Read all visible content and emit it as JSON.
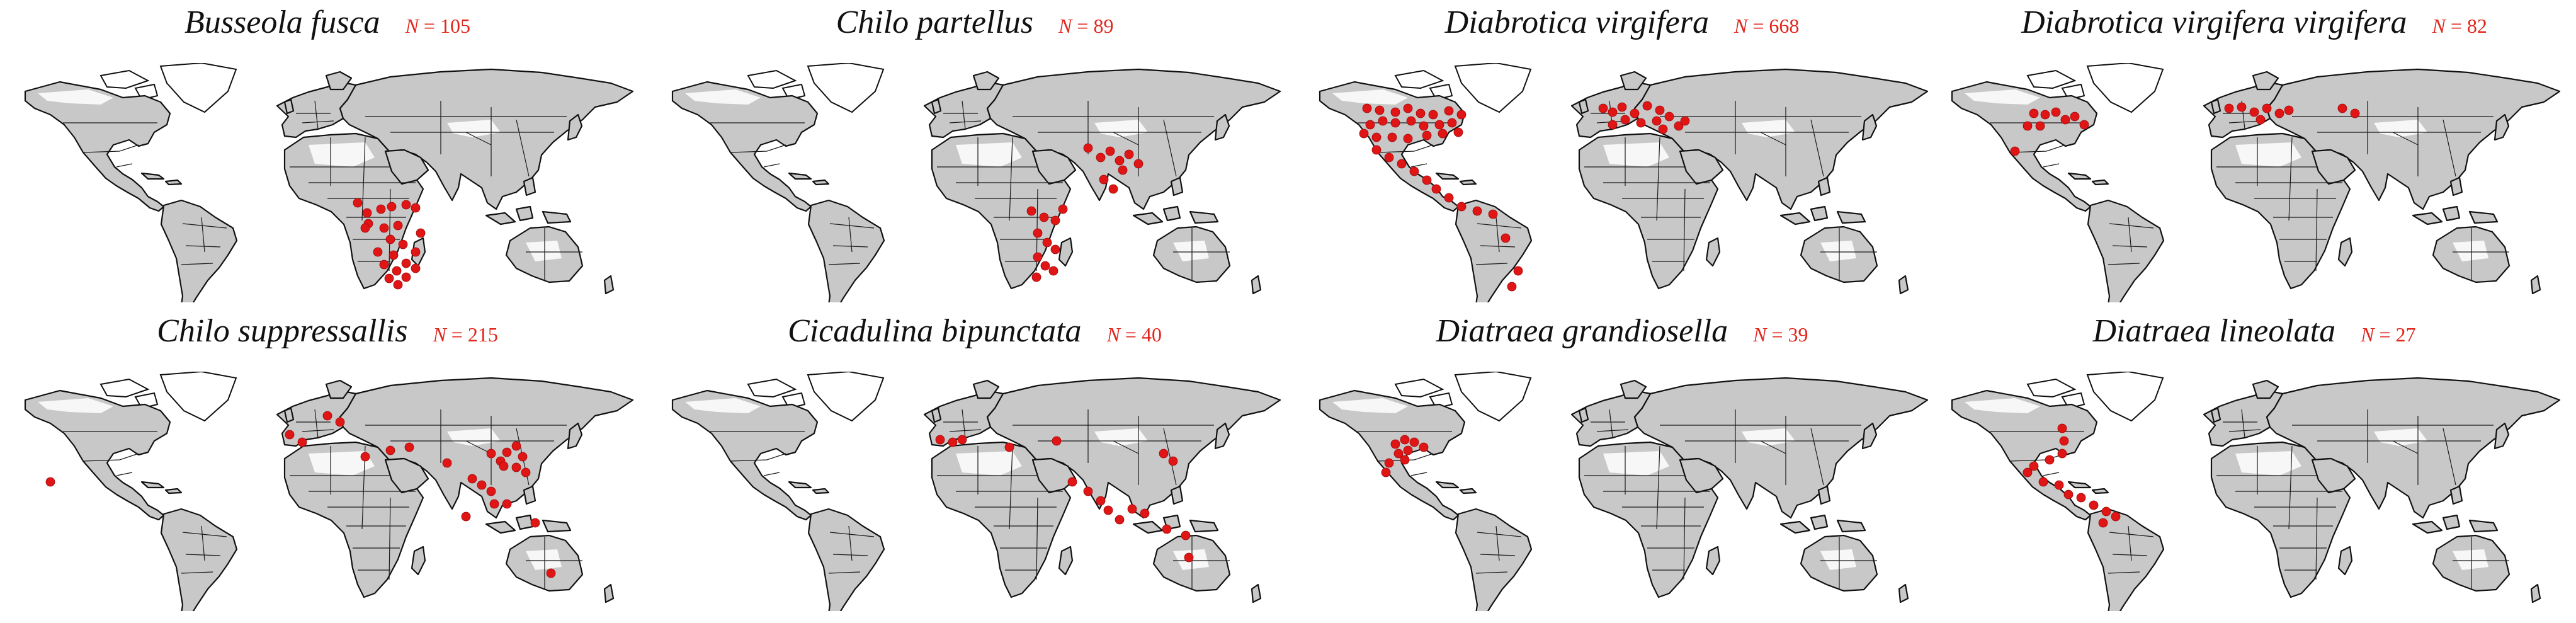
{
  "panels": [
    {
      "species": "Busseola fusca",
      "n_label": "N",
      "n_value": "105",
      "points": [
        [
          548,
          222
        ],
        [
          563,
          238
        ],
        [
          585,
          232
        ],
        [
          602,
          228
        ],
        [
          625,
          225
        ],
        [
          640,
          230
        ],
        [
          565,
          255
        ],
        [
          590,
          262
        ],
        [
          612,
          258
        ],
        [
          600,
          280
        ],
        [
          620,
          288
        ],
        [
          640,
          300
        ],
        [
          605,
          305
        ],
        [
          590,
          320
        ],
        [
          610,
          330
        ],
        [
          625,
          318
        ],
        [
          598,
          342
        ],
        [
          612,
          352
        ],
        [
          625,
          340
        ],
        [
          640,
          326
        ],
        [
          580,
          300
        ],
        [
          560,
          262
        ],
        [
          648,
          270
        ]
      ]
    },
    {
      "species": "Chilo partellus",
      "n_label": "N",
      "n_value": "89",
      "points": [
        [
          680,
          135
        ],
        [
          700,
          150
        ],
        [
          715,
          140
        ],
        [
          730,
          155
        ],
        [
          745,
          145
        ],
        [
          760,
          160
        ],
        [
          735,
          170
        ],
        [
          705,
          185
        ],
        [
          720,
          200
        ],
        [
          590,
          235
        ],
        [
          610,
          245
        ],
        [
          628,
          250
        ],
        [
          640,
          232
        ],
        [
          600,
          270
        ],
        [
          615,
          285
        ],
        [
          628,
          296
        ],
        [
          600,
          308
        ],
        [
          612,
          322
        ],
        [
          625,
          330
        ],
        [
          598,
          340
        ]
      ]
    },
    {
      "species": "Diabrotica virgifera",
      "n_label": "N",
      "n_value": "668",
      "points": [
        [
          95,
          72
        ],
        [
          115,
          75
        ],
        [
          140,
          78
        ],
        [
          160,
          72
        ],
        [
          180,
          80
        ],
        [
          200,
          82
        ],
        [
          225,
          76
        ],
        [
          245,
          82
        ],
        [
          230,
          95
        ],
        [
          210,
          98
        ],
        [
          185,
          100
        ],
        [
          165,
          92
        ],
        [
          140,
          95
        ],
        [
          120,
          92
        ],
        [
          100,
          98
        ],
        [
          90,
          112
        ],
        [
          110,
          118
        ],
        [
          135,
          118
        ],
        [
          160,
          120
        ],
        [
          190,
          115
        ],
        [
          215,
          112
        ],
        [
          240,
          110
        ],
        [
          110,
          138
        ],
        [
          130,
          150
        ],
        [
          150,
          160
        ],
        [
          170,
          172
        ],
        [
          190,
          186
        ],
        [
          205,
          200
        ],
        [
          225,
          214
        ],
        [
          245,
          228
        ],
        [
          270,
          235
        ],
        [
          295,
          240
        ],
        [
          315,
          278
        ],
        [
          335,
          330
        ],
        [
          325,
          355
        ],
        [
          470,
          72
        ],
        [
          485,
          78
        ],
        [
          500,
          70
        ],
        [
          520,
          80
        ],
        [
          540,
          68
        ],
        [
          560,
          75
        ],
        [
          575,
          85
        ],
        [
          555,
          92
        ],
        [
          530,
          95
        ],
        [
          505,
          90
        ],
        [
          485,
          98
        ],
        [
          590,
          100
        ],
        [
          600,
          92
        ],
        [
          565,
          105
        ]
      ]
    },
    {
      "species": "Diabrotica virgifera virgifera",
      "n_label": "N",
      "n_value": "82",
      "points": [
        [
          150,
          80
        ],
        [
          168,
          82
        ],
        [
          185,
          78
        ],
        [
          200,
          90
        ],
        [
          215,
          85
        ],
        [
          230,
          98
        ],
        [
          160,
          100
        ],
        [
          140,
          100
        ],
        [
          120,
          140
        ],
        [
          460,
          72
        ],
        [
          480,
          70
        ],
        [
          500,
          78
        ],
        [
          520,
          72
        ],
        [
          540,
          80
        ],
        [
          555,
          75
        ],
        [
          510,
          90
        ],
        [
          640,
          72
        ],
        [
          660,
          80
        ]
      ]
    },
    {
      "species": "Chilo suppressallis",
      "n_label": "N",
      "n_value": "215",
      "points": [
        [
          60,
          175
        ],
        [
          500,
          70
        ],
        [
          520,
          80
        ],
        [
          440,
          100
        ],
        [
          460,
          112
        ],
        [
          560,
          135
        ],
        [
          600,
          125
        ],
        [
          630,
          120
        ],
        [
          690,
          145
        ],
        [
          760,
          130
        ],
        [
          775,
          142
        ],
        [
          785,
          128
        ],
        [
          800,
          118
        ],
        [
          810,
          135
        ],
        [
          800,
          152
        ],
        [
          815,
          160
        ],
        [
          780,
          150
        ],
        [
          730,
          170
        ],
        [
          745,
          180
        ],
        [
          760,
          190
        ],
        [
          765,
          210
        ],
        [
          720,
          230
        ],
        [
          785,
          210
        ],
        [
          830,
          240
        ],
        [
          855,
          320
        ]
      ]
    },
    {
      "species": "Cicadulina bipunctata",
      "n_label": "N",
      "n_value": "40",
      "points": [
        [
          445,
          108
        ],
        [
          465,
          112
        ],
        [
          480,
          108
        ],
        [
          555,
          120
        ],
        [
          630,
          110
        ],
        [
          655,
          175
        ],
        [
          680,
          190
        ],
        [
          700,
          205
        ],
        [
          712,
          220
        ],
        [
          730,
          235
        ],
        [
          750,
          218
        ],
        [
          770,
          225
        ],
        [
          805,
          250
        ],
        [
          835,
          260
        ],
        [
          800,
          130
        ],
        [
          815,
          142
        ],
        [
          840,
          295
        ]
      ]
    },
    {
      "species": "Diatraea grandiosella",
      "n_label": "N",
      "n_value": "39",
      "points": [
        [
          140,
          115
        ],
        [
          155,
          108
        ],
        [
          170,
          112
        ],
        [
          185,
          120
        ],
        [
          160,
          125
        ],
        [
          145,
          130
        ],
        [
          130,
          145
        ],
        [
          125,
          160
        ],
        [
          155,
          140
        ]
      ]
    },
    {
      "species": "Diatraea lineolata",
      "n_label": "N",
      "n_value": "27",
      "points": [
        [
          195,
          90
        ],
        [
          198,
          110
        ],
        [
          195,
          130
        ],
        [
          175,
          140
        ],
        [
          150,
          150
        ],
        [
          140,
          160
        ],
        [
          165,
          175
        ],
        [
          190,
          180
        ],
        [
          205,
          195
        ],
        [
          225,
          200
        ],
        [
          245,
          212
        ],
        [
          265,
          222
        ],
        [
          280,
          230
        ],
        [
          260,
          240
        ]
      ]
    }
  ]
}
